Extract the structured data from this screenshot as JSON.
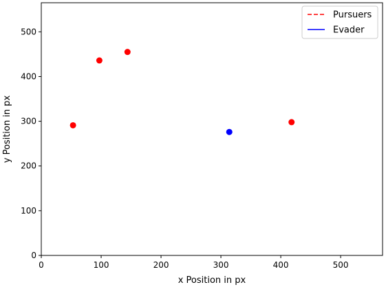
{
  "chart_data": {
    "type": "scatter",
    "title": "",
    "xlabel": "x Position in px",
    "ylabel": "y Position in px",
    "xlim": [
      0,
      570
    ],
    "ylim": [
      0,
      565
    ],
    "xticks": [
      0,
      100,
      200,
      300,
      400,
      500
    ],
    "yticks": [
      0,
      100,
      200,
      300,
      400,
      500
    ],
    "grid": false,
    "legend_position": "top-right",
    "series": [
      {
        "name": "Pursuers",
        "color": "#ff0000",
        "legend_line": "dashed",
        "points": [
          {
            "x": 53,
            "y": 291
          },
          {
            "x": 97,
            "y": 436
          },
          {
            "x": 144,
            "y": 455
          },
          {
            "x": 418,
            "y": 298
          }
        ]
      },
      {
        "name": "Evader",
        "color": "#0000ff",
        "legend_line": "solid",
        "points": [
          {
            "x": 314,
            "y": 276
          }
        ]
      }
    ]
  }
}
